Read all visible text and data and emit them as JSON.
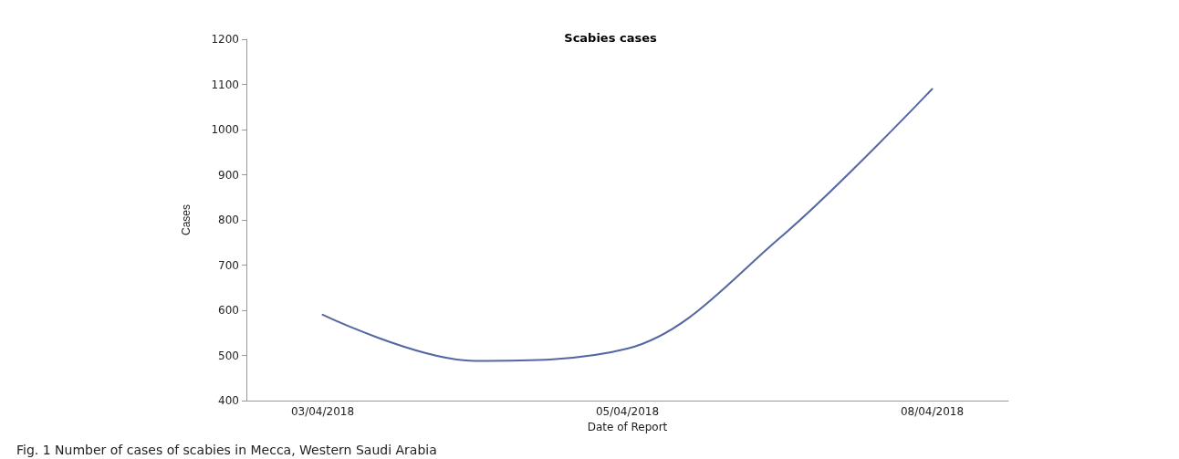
{
  "chart_data": {
    "type": "line",
    "title": "Scabies cases",
    "xlabel": "Date of Report",
    "ylabel": "Cases",
    "categories": [
      "03/04/2018",
      null,
      "05/04/2018",
      null,
      "08/04/2018"
    ],
    "series": [
      {
        "color": "#5566a0",
        "values": [
          590,
          488,
          515,
          760,
          1090
        ]
      }
    ],
    "ylim": [
      400,
      1200
    ],
    "yticks": [
      400,
      500,
      600,
      700,
      800,
      900,
      1000,
      1100,
      1200
    ],
    "grid": false,
    "marker": "none",
    "line_style": "solid",
    "annotations": [
      "Fig. 1 Number of cases of scabies in Mecca, Western Saudi Arabia"
    ]
  }
}
